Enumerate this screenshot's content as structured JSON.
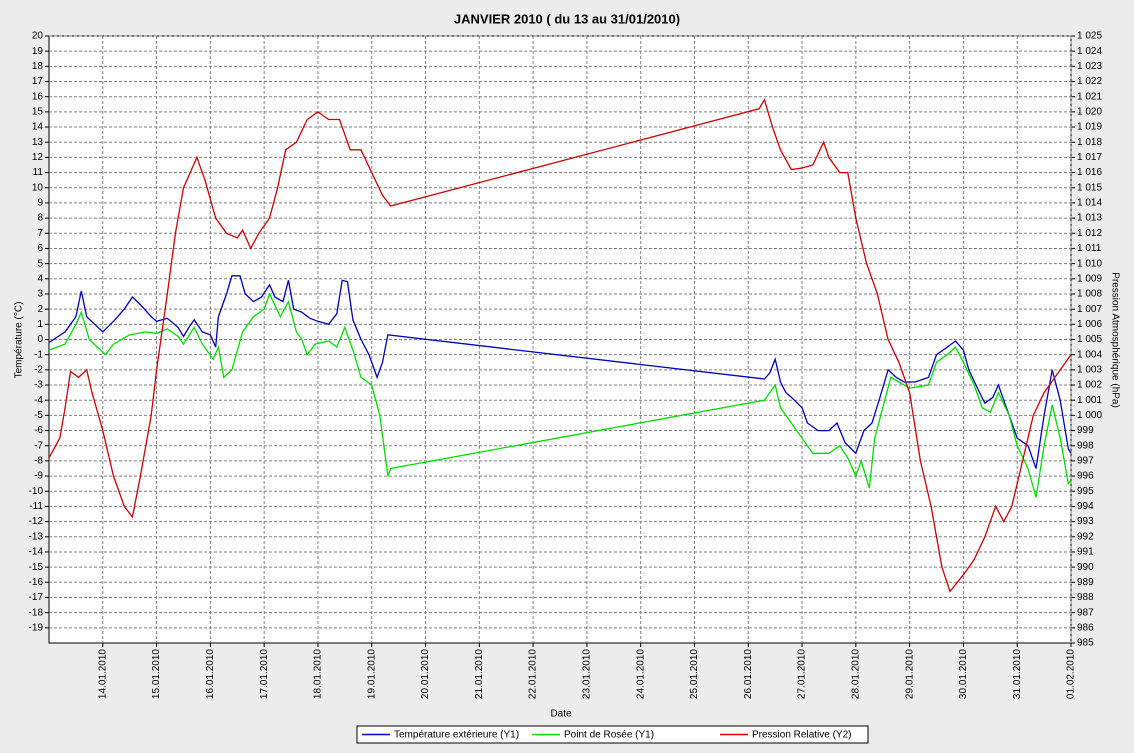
{
  "chart_data": {
    "type": "line",
    "title": "JANVIER  2010  ( du 13 au 31/01/2010)",
    "xlabel": "Date",
    "ylabel": "Température (°C)",
    "y2label": "Pression Atmosphérique (hPa)",
    "grid": true,
    "legend": "bottom",
    "xlim": [
      13,
      32
    ],
    "xticks": [
      {
        "value": 14,
        "label": "14.01.2010"
      },
      {
        "value": 15,
        "label": "15.01.2010"
      },
      {
        "value": 16,
        "label": "16.01.2010"
      },
      {
        "value": 17,
        "label": "17.01.2010"
      },
      {
        "value": 18,
        "label": "18.01.2010"
      },
      {
        "value": 19,
        "label": "19.01.2010"
      },
      {
        "value": 20,
        "label": "20.01.2010"
      },
      {
        "value": 21,
        "label": "21.01.2010"
      },
      {
        "value": 22,
        "label": "22.01.2010"
      },
      {
        "value": 23,
        "label": "23.01.2010"
      },
      {
        "value": 24,
        "label": "24.01.2010"
      },
      {
        "value": 25,
        "label": "25.01.2010"
      },
      {
        "value": 26,
        "label": "26.01.2010"
      },
      {
        "value": 27,
        "label": "27.01.2010"
      },
      {
        "value": 28,
        "label": "28.01.2010"
      },
      {
        "value": 29,
        "label": "29.01.2010"
      },
      {
        "value": 30,
        "label": "30.01.2010"
      },
      {
        "value": 31,
        "label": "31.01.2010"
      },
      {
        "value": 32,
        "label": "01.02.2010"
      }
    ],
    "ylim": [
      -20,
      20
    ],
    "yticks": [
      -19,
      -18,
      -17,
      -16,
      -15,
      -14,
      -13,
      -12,
      -11,
      -10,
      -9,
      -8,
      -7,
      -6,
      -5,
      -4,
      -3,
      -2,
      -1,
      0,
      1,
      2,
      3,
      4,
      5,
      6,
      7,
      8,
      9,
      10,
      11,
      12,
      13,
      14,
      15,
      16,
      17,
      18,
      19,
      20
    ],
    "y2lim": [
      985,
      1025
    ],
    "y2ticks": [
      985,
      986,
      987,
      988,
      989,
      990,
      991,
      992,
      993,
      994,
      995,
      996,
      997,
      998,
      999,
      {
        "value": 1000,
        "label": "1 000"
      },
      {
        "value": 1001,
        "label": "1 001"
      },
      {
        "value": 1002,
        "label": "1 002"
      },
      {
        "value": 1003,
        "label": "1 003"
      },
      {
        "value": 1004,
        "label": "1 004"
      },
      {
        "value": 1005,
        "label": "1 005"
      },
      {
        "value": 1006,
        "label": "1 006"
      },
      {
        "value": 1007,
        "label": "1 007"
      },
      {
        "value": 1008,
        "label": "1 008"
      },
      {
        "value": 1009,
        "label": "1 009"
      },
      {
        "value": 1010,
        "label": "1 010"
      },
      {
        "value": 1011,
        "label": "1 011"
      },
      {
        "value": 1012,
        "label": "1 012"
      },
      {
        "value": 1013,
        "label": "1 013"
      },
      {
        "value": 1014,
        "label": "1 014"
      },
      {
        "value": 1015,
        "label": "1 015"
      },
      {
        "value": 1016,
        "label": "1 016"
      },
      {
        "value": 1017,
        "label": "1 017"
      },
      {
        "value": 1018,
        "label": "1 018"
      },
      {
        "value": 1019,
        "label": "1 019"
      },
      {
        "value": 1020,
        "label": "1 020"
      },
      {
        "value": 1021,
        "label": "1 021"
      },
      {
        "value": 1022,
        "label": "1 022"
      },
      {
        "value": 1023,
        "label": "1 023"
      },
      {
        "value": 1024,
        "label": "1 024"
      },
      {
        "value": 1025,
        "label": "1 025"
      }
    ],
    "series": [
      {
        "name": "Température extérieure (Y1)",
        "color": "#0000c0",
        "axis": "y",
        "x": [
          13.0,
          13.3,
          13.5,
          13.6,
          13.7,
          13.85,
          14.0,
          14.2,
          14.4,
          14.55,
          14.7,
          14.9,
          15.0,
          15.2,
          15.4,
          15.5,
          15.6,
          15.7,
          15.85,
          16.0,
          16.1,
          16.15,
          16.3,
          16.4,
          16.55,
          16.65,
          16.8,
          16.95,
          17.1,
          17.2,
          17.35,
          17.45,
          17.55,
          17.7,
          17.85,
          18.0,
          18.2,
          18.35,
          18.45,
          18.55,
          18.65,
          18.8,
          18.95,
          19.1,
          19.2,
          19.3,
          26.3,
          26.4,
          26.5,
          26.6,
          26.7,
          26.8,
          27.0,
          27.1,
          27.3,
          27.5,
          27.65,
          27.8,
          28.0,
          28.15,
          28.3,
          28.45,
          28.6,
          28.75,
          28.9,
          29.1,
          29.35,
          29.5,
          29.7,
          29.85,
          30.0,
          30.1,
          30.3,
          30.4,
          30.55,
          30.65,
          30.8,
          31.0,
          31.2,
          31.35,
          31.5,
          31.65,
          31.8,
          31.95,
          32.0
        ],
        "values": [
          -0.2,
          0.5,
          1.5,
          3.2,
          1.5,
          1.0,
          0.5,
          1.2,
          2.0,
          2.8,
          2.3,
          1.5,
          1.2,
          1.4,
          0.8,
          0.2,
          0.8,
          1.3,
          0.5,
          0.3,
          -0.5,
          1.5,
          3.0,
          4.2,
          4.2,
          3.0,
          2.5,
          2.8,
          3.6,
          2.8,
          2.5,
          3.9,
          2.0,
          1.8,
          1.4,
          1.2,
          1.0,
          1.7,
          3.9,
          3.8,
          1.3,
          0.0,
          -1.0,
          -2.5,
          -1.5,
          0.3,
          -2.6,
          -2.2,
          -1.3,
          -2.8,
          -3.5,
          -3.8,
          -4.5,
          -5.5,
          -6.0,
          -6.0,
          -5.5,
          -6.8,
          -7.5,
          -6.0,
          -5.5,
          -3.8,
          -2.0,
          -2.5,
          -2.8,
          -2.8,
          -2.5,
          -1.0,
          -0.5,
          -0.1,
          -0.7,
          -2.0,
          -3.5,
          -4.2,
          -3.8,
          -3.0,
          -4.5,
          -6.5,
          -7.0,
          -8.5,
          -5.0,
          -2.0,
          -4.0,
          -7.2,
          -7.5
        ]
      },
      {
        "name": "Point de Rosée (Y1)",
        "color": "#00e000",
        "axis": "y",
        "x": [
          13.0,
          13.3,
          13.5,
          13.6,
          13.75,
          13.9,
          14.05,
          14.2,
          14.5,
          14.8,
          15.0,
          15.2,
          15.4,
          15.5,
          15.7,
          15.85,
          16.05,
          16.15,
          16.25,
          16.4,
          16.6,
          16.8,
          17.0,
          17.1,
          17.3,
          17.45,
          17.6,
          17.7,
          17.8,
          17.95,
          18.2,
          18.35,
          18.5,
          18.65,
          18.8,
          19.0,
          19.15,
          19.3,
          19.35,
          26.3,
          26.4,
          26.5,
          26.6,
          26.8,
          27.0,
          27.2,
          27.5,
          27.7,
          27.85,
          28.0,
          28.1,
          28.25,
          28.35,
          28.5,
          28.65,
          28.8,
          29.0,
          29.35,
          29.5,
          29.7,
          29.85,
          30.0,
          30.2,
          30.35,
          30.5,
          30.65,
          30.85,
          31.0,
          31.2,
          31.35,
          31.5,
          31.65,
          31.8,
          31.95,
          32.0
        ],
        "values": [
          -0.7,
          -0.3,
          1.0,
          1.8,
          0.0,
          -0.5,
          -1.0,
          -0.3,
          0.3,
          0.5,
          0.4,
          0.7,
          0.2,
          -0.3,
          0.8,
          -0.3,
          -1.3,
          -0.5,
          -2.5,
          -2.0,
          0.5,
          1.5,
          2.0,
          3.0,
          1.5,
          2.5,
          0.5,
          0.0,
          -1.0,
          -0.3,
          -0.1,
          -0.5,
          0.8,
          -0.7,
          -2.5,
          -3.0,
          -5.0,
          -9.0,
          -8.5,
          -4.0,
          -3.5,
          -3.0,
          -4.5,
          -5.5,
          -6.5,
          -7.5,
          -7.5,
          -7.0,
          -7.8,
          -9.0,
          -8.0,
          -9.8,
          -6.5,
          -4.5,
          -2.5,
          -2.8,
          -3.2,
          -3.0,
          -1.5,
          -1.0,
          -0.5,
          -1.5,
          -3.0,
          -4.5,
          -4.8,
          -3.5,
          -5.0,
          -7.0,
          -8.5,
          -10.4,
          -7.0,
          -4.3,
          -6.5,
          -9.5,
          -9.3
        ]
      },
      {
        "name": "Pression Relative (Y2)",
        "color": "#d00000",
        "axis": "y2",
        "x": [
          13.0,
          13.2,
          13.3,
          13.4,
          13.55,
          13.7,
          13.8,
          14.0,
          14.2,
          14.4,
          14.55,
          14.7,
          14.9,
          15.0,
          15.2,
          15.35,
          15.5,
          15.75,
          15.9,
          16.1,
          16.3,
          16.5,
          16.6,
          16.75,
          16.9,
          17.1,
          17.25,
          17.4,
          17.6,
          17.8,
          18.0,
          18.2,
          18.4,
          18.6,
          18.8,
          19.0,
          19.2,
          19.35,
          26.2,
          26.3,
          26.45,
          26.6,
          26.8,
          27.0,
          27.2,
          27.4,
          27.5,
          27.7,
          27.85,
          28.0,
          28.2,
          28.4,
          28.6,
          28.8,
          29.0,
          29.2,
          29.4,
          29.6,
          29.75,
          30.0,
          30.2,
          30.4,
          30.6,
          30.75,
          30.9,
          31.1,
          31.3,
          31.5,
          31.7,
          31.9,
          32.0
        ],
        "values": [
          997.2,
          998.5,
          1000.5,
          1002.9,
          1002.5,
          1003,
          1001.5,
          999,
          996,
          994,
          993.3,
          996,
          1000,
          1003,
          1008,
          1012,
          1015,
          1017,
          1015.5,
          1013,
          1012,
          1011.7,
          1012.2,
          1011,
          1012,
          1013,
          1015,
          1017.5,
          1018,
          1019.5,
          1020,
          1019.5,
          1019.5,
          1017.5,
          1017.5,
          1016,
          1014.5,
          1013.8,
          1020.2,
          1020.8,
          1019,
          1017.5,
          1016.2,
          1016.3,
          1016.5,
          1018,
          1017,
          1016,
          1016,
          1013,
          1010,
          1008,
          1005,
          1003.5,
          1001.5,
          997,
          994,
          990,
          988.4,
          989.5,
          990.5,
          992,
          994,
          993,
          994,
          997,
          1000,
          1001.5,
          1002.5,
          1003.5,
          1004
        ]
      }
    ]
  }
}
